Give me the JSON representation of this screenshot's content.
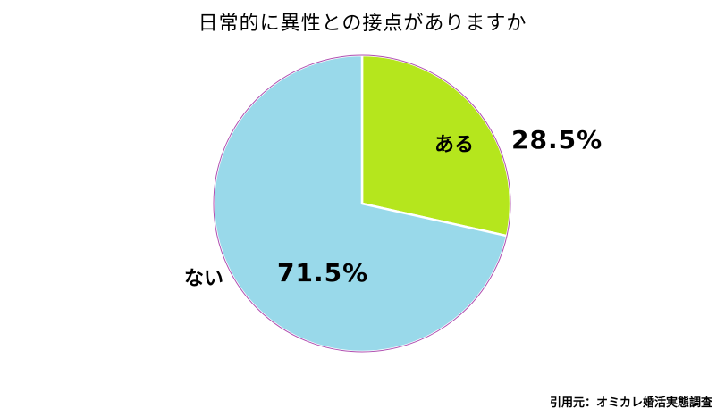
{
  "chart_data": {
    "type": "pie",
    "title": "日常的に異性との接点がありますか",
    "start_angle_deg": 0,
    "direction": "clockwise",
    "slices": [
      {
        "label": "ある",
        "value": 28.5,
        "value_label": "28.5%",
        "color": "#b5e61d"
      },
      {
        "label": "ない",
        "value": 71.5,
        "value_label": "71.5%",
        "color": "#99d9ea"
      }
    ],
    "slice_border_color": "#ffffff",
    "outline_color": "#b04fb0"
  },
  "footer": {
    "source": "引用元：オミカレ婚活実態調査"
  }
}
